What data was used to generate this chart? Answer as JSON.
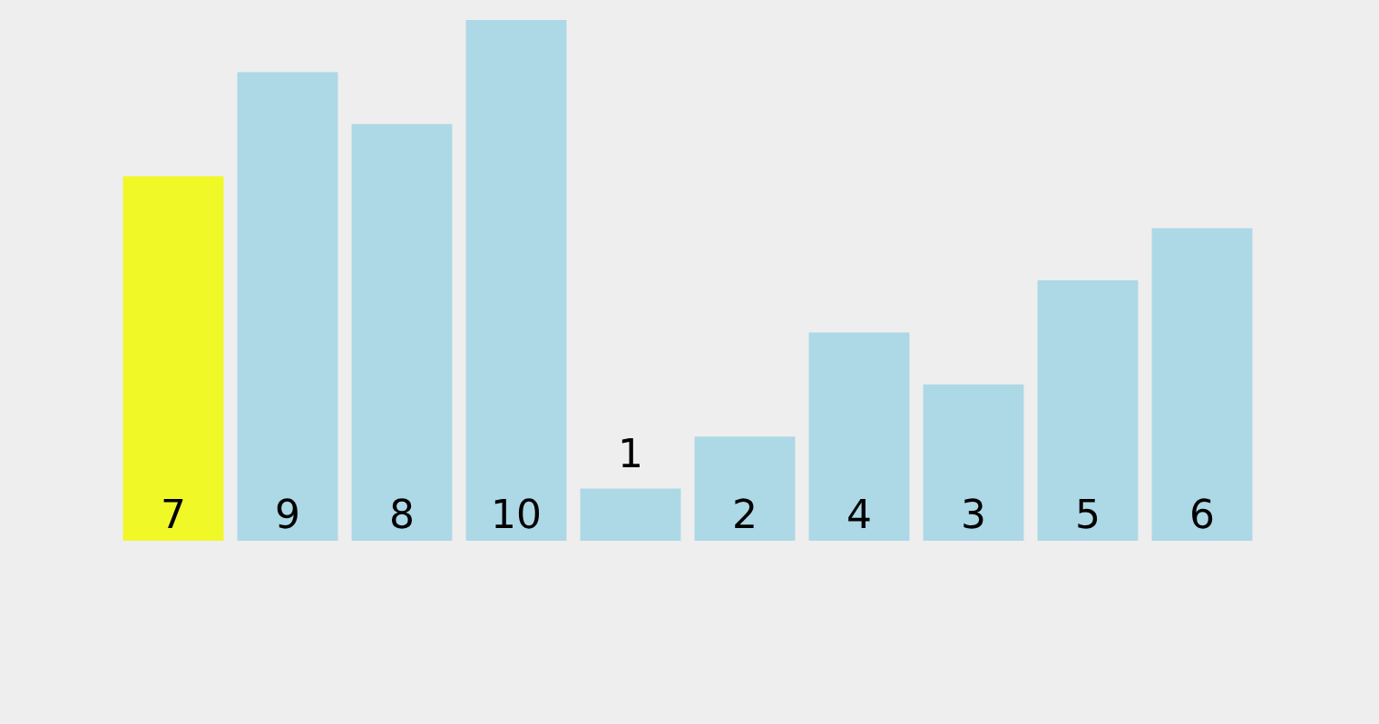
{
  "chart_data": {
    "type": "bar",
    "categories": [
      null,
      null,
      null,
      null,
      null,
      null,
      null,
      null,
      null,
      null
    ],
    "values": [
      7,
      9,
      8,
      10,
      1,
      2,
      4,
      3,
      5,
      6
    ],
    "colors": [
      "#f0f828",
      "#add8e6",
      "#add8e6",
      "#add8e6",
      "#add8e6",
      "#add8e6",
      "#add8e6",
      "#add8e6",
      "#add8e6",
      "#add8e6"
    ],
    "data_labels": true
  }
}
